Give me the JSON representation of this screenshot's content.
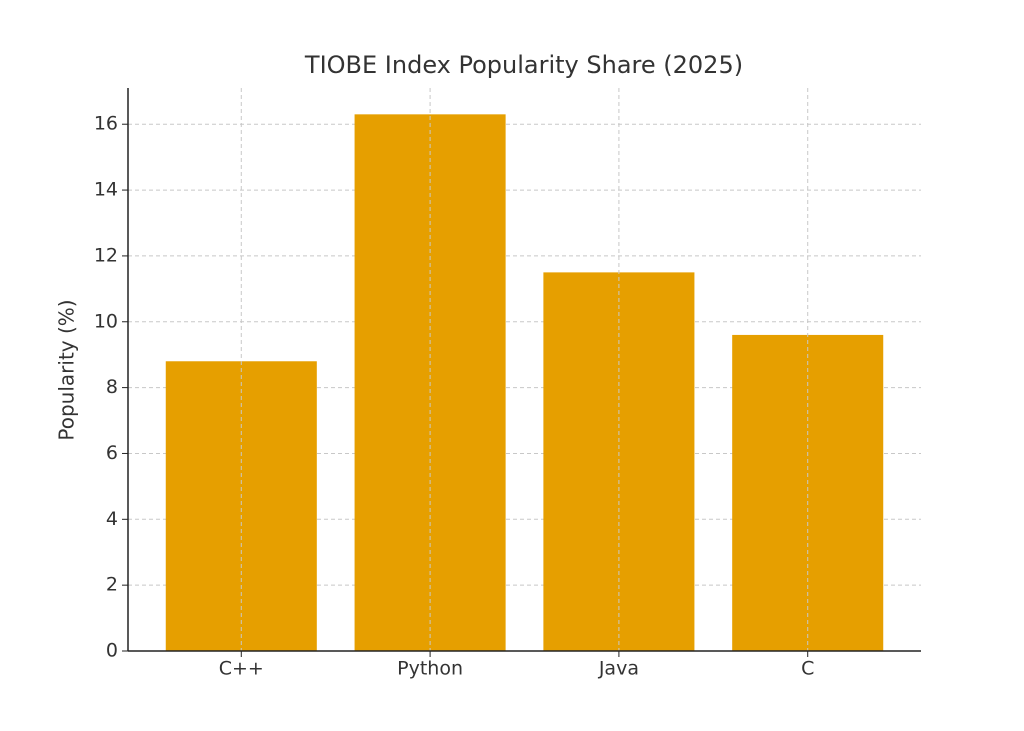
{
  "chart_data": {
    "type": "bar",
    "title": "TIOBE Index Popularity Share (2025)",
    "y_label": "Popularity (%)",
    "categories": [
      "C++",
      "Python",
      "Java",
      "C"
    ],
    "values": [
      8.8,
      16.3,
      11.5,
      9.6
    ],
    "color": "#e69f00",
    "ylim": [
      0,
      17.1
    ],
    "yticks": [
      0,
      2,
      4,
      6,
      8,
      10,
      12,
      14,
      16
    ],
    "grid": true
  }
}
